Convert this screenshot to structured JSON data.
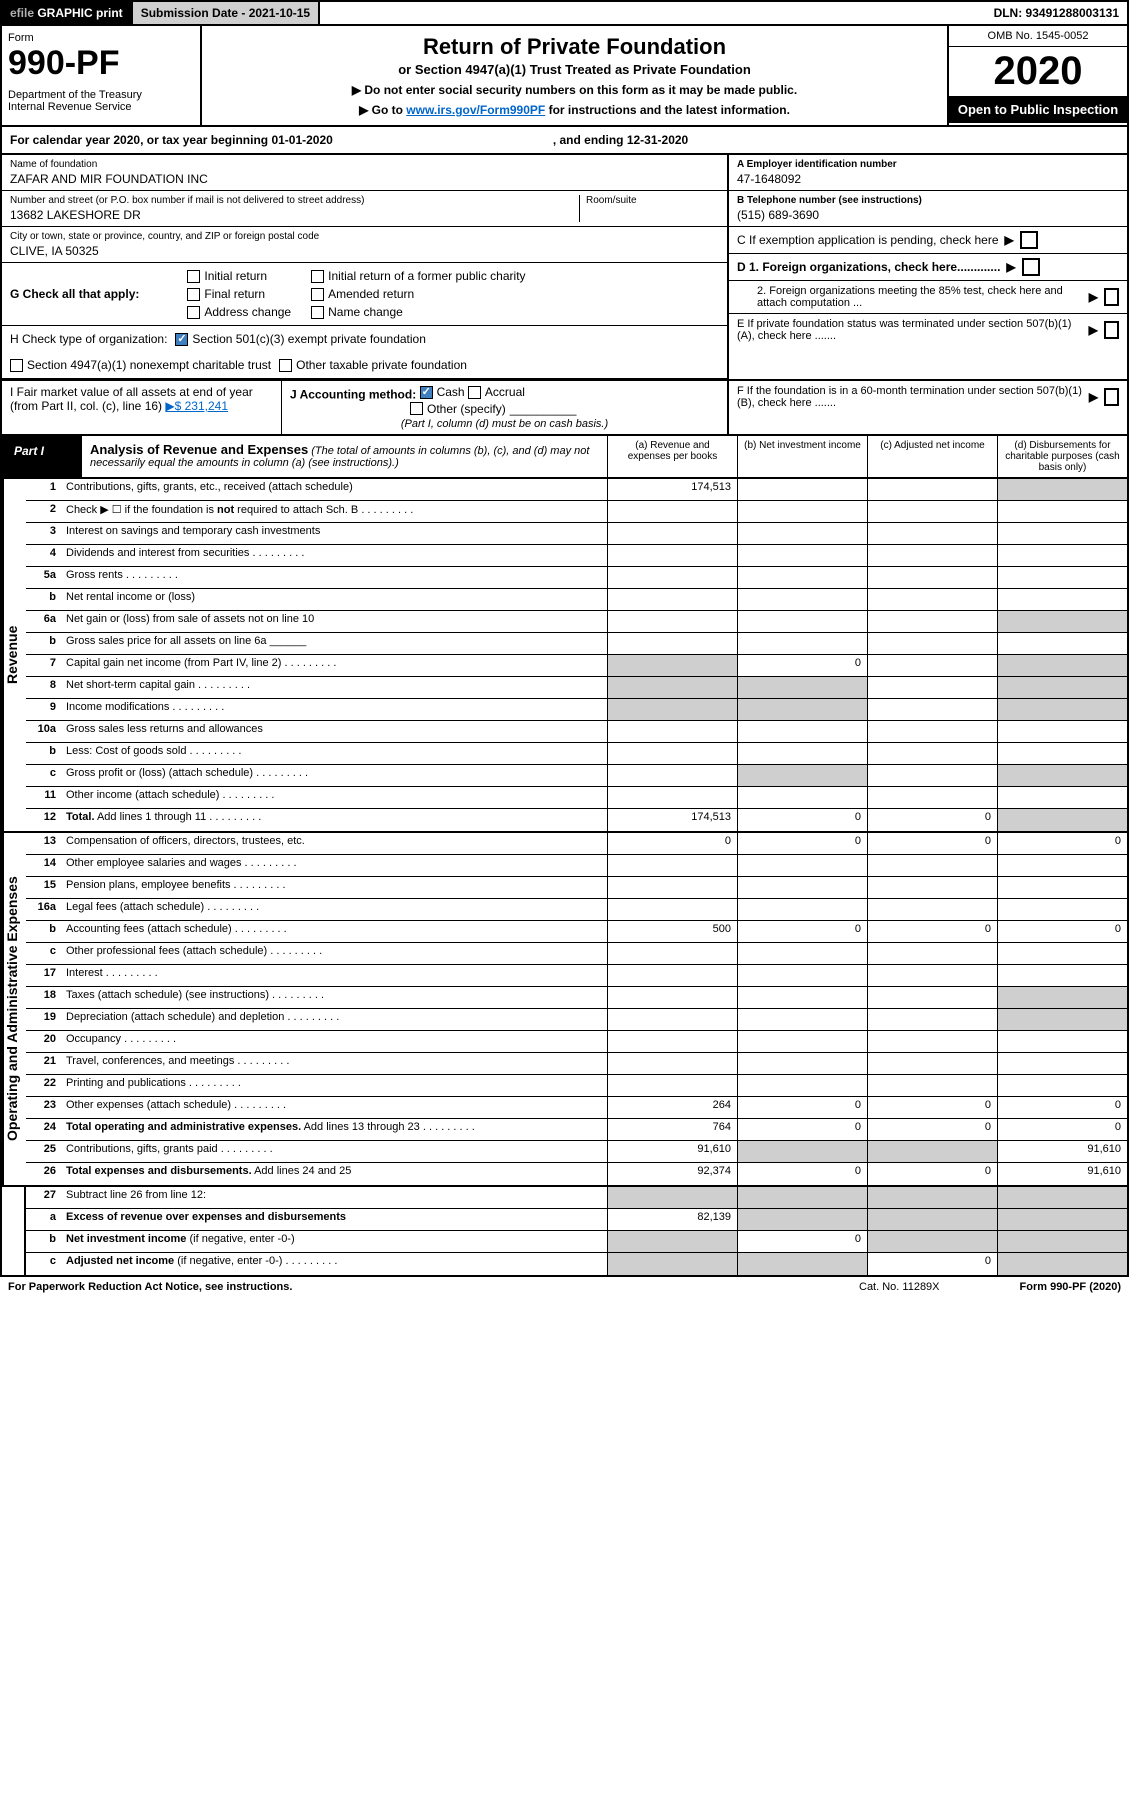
{
  "topbar": {
    "efile_prefix": "efile",
    "efile_text": " GRAPHIC print",
    "subdate": "Submission Date - 2021-10-15",
    "dln": "DLN: 93491288003131"
  },
  "header": {
    "form": "Form",
    "formno": "990-PF",
    "dept": "Department of the Treasury\nInternal Revenue Service",
    "title": "Return of Private Foundation",
    "sub": "or Section 4947(a)(1) Trust Treated as Private Foundation",
    "note1": "▶ Do not enter social security numbers on this form as it may be made public.",
    "note2_pre": "▶ Go to ",
    "note2_link": "www.irs.gov/Form990PF",
    "note2_post": " for instructions and the latest information.",
    "omb": "OMB No. 1545-0052",
    "year": "2020",
    "open": "Open to Public Inspection"
  },
  "caly": {
    "text": "For calendar year 2020, or tax year beginning 01-01-2020",
    "ending": ", and ending 12-31-2020"
  },
  "info": {
    "name_lbl": "Name of foundation",
    "name": "ZAFAR AND MIR FOUNDATION INC",
    "addr_lbl": "Number and street (or P.O. box number if mail is not delivered to street address)",
    "addr": "13682 LAKESHORE DR",
    "room_lbl": "Room/suite",
    "city_lbl": "City or town, state or province, country, and ZIP or foreign postal code",
    "city": "CLIVE, IA  50325",
    "ein_lbl": "A Employer identification number",
    "ein": "47-1648092",
    "tel_lbl": "B Telephone number (see instructions)",
    "tel": "(515) 689-3690",
    "c": "C If exemption application is pending, check here",
    "d1": "D 1. Foreign organizations, check here.............",
    "d2": "2. Foreign organizations meeting the 85% test, check here and attach computation ...",
    "e": "E  If private foundation status was terminated under section 507(b)(1)(A), check here .......",
    "f": "F  If the foundation is in a 60-month termination under section 507(b)(1)(B), check here .......",
    "g": "G Check all that apply:",
    "g_items": [
      "Initial return",
      "Final return",
      "Address change",
      "Initial return of a former public charity",
      "Amended return",
      "Name change"
    ],
    "h": "H Check type of organization:",
    "h1": "Section 501(c)(3) exempt private foundation",
    "h2": "Section 4947(a)(1) nonexempt charitable trust",
    "h3": "Other taxable private foundation",
    "i_lbl": "I Fair market value of all assets at end of year (from Part II, col. (c), line 16)",
    "i_val": "▶$  231,241",
    "j": "J Accounting method:",
    "j_cash": "Cash",
    "j_accr": "Accrual",
    "j_other": "Other (specify)",
    "j_note": "(Part I, column (d) must be on cash basis.)"
  },
  "part": {
    "lbl": "Part I",
    "title": "Analysis of Revenue and Expenses",
    "note": " (The total of amounts in columns (b), (c), and (d) may not necessarily equal the amounts in column (a) (see instructions).)",
    "col_a": "(a)   Revenue and expenses per books",
    "col_b": "(b)   Net investment income",
    "col_c": "(c)   Adjusted net income",
    "col_d": "(d)  Disbursements for charitable purposes (cash basis only)"
  },
  "side": {
    "rev": "Revenue",
    "exp": "Operating and Administrative Expenses"
  },
  "rows": [
    {
      "ln": "1",
      "d": "Contributions, gifts, grants, etc., received (attach schedule)",
      "a": "174,513",
      "greyD": true
    },
    {
      "ln": "2",
      "d": "Check ▶ ☐ if the foundation is <b>not</b> required to attach Sch. B",
      "dots": true,
      "noA": true
    },
    {
      "ln": "3",
      "d": "Interest on savings and temporary cash investments"
    },
    {
      "ln": "4",
      "d": "Dividends and interest from securities",
      "dots": true
    },
    {
      "ln": "5a",
      "d": "Gross rents",
      "dots": true
    },
    {
      "ln": "b",
      "d": "Net rental income or (loss)",
      "noA": true
    },
    {
      "ln": "6a",
      "d": "Net gain or (loss) from sale of assets not on line 10",
      "greyD": true
    },
    {
      "ln": "b",
      "d": "Gross sales price for all assets on line 6a ______",
      "noA": true
    },
    {
      "ln": "7",
      "d": "Capital gain net income (from Part IV, line 2)",
      "dots": true,
      "greyA": true,
      "b": "0",
      "greyD": true
    },
    {
      "ln": "8",
      "d": "Net short-term capital gain",
      "dots": true,
      "greyA": true,
      "greyB": true,
      "greyD": true
    },
    {
      "ln": "9",
      "d": "Income modifications",
      "dots": true,
      "greyA": true,
      "greyB": true,
      "greyD": true
    },
    {
      "ln": "10a",
      "d": "Gross sales less returns and allowances",
      "noA": true
    },
    {
      "ln": "b",
      "d": "Less: Cost of goods sold",
      "dots": true,
      "noA": true
    },
    {
      "ln": "c",
      "d": "Gross profit or (loss) (attach schedule)",
      "dots": true,
      "greyB": true,
      "greyD": true
    },
    {
      "ln": "11",
      "d": "Other income (attach schedule)",
      "dots": true
    },
    {
      "ln": "12",
      "d": "<b>Total.</b> Add lines 1 through 11",
      "dots": true,
      "a": "174,513",
      "b": "0",
      "c": "0",
      "greyD": true
    }
  ],
  "exprows": [
    {
      "ln": "13",
      "d": "Compensation of officers, directors, trustees, etc.",
      "a": "0",
      "b": "0",
      "c": "0",
      "dd": "0"
    },
    {
      "ln": "14",
      "d": "Other employee salaries and wages",
      "dots": true
    },
    {
      "ln": "15",
      "d": "Pension plans, employee benefits",
      "dots": true
    },
    {
      "ln": "16a",
      "d": "Legal fees (attach schedule)",
      "dots": true
    },
    {
      "ln": "b",
      "d": "Accounting fees (attach schedule)",
      "dots": true,
      "a": "500",
      "b": "0",
      "c": "0",
      "dd": "0"
    },
    {
      "ln": "c",
      "d": "Other professional fees (attach schedule)",
      "dots": true
    },
    {
      "ln": "17",
      "d": "Interest",
      "dots": true
    },
    {
      "ln": "18",
      "d": "Taxes (attach schedule) (see instructions)",
      "dots": true,
      "greyD": true
    },
    {
      "ln": "19",
      "d": "Depreciation (attach schedule) and depletion",
      "dots": true,
      "greyD": true
    },
    {
      "ln": "20",
      "d": "Occupancy",
      "dots": true
    },
    {
      "ln": "21",
      "d": "Travel, conferences, and meetings",
      "dots": true
    },
    {
      "ln": "22",
      "d": "Printing and publications",
      "dots": true
    },
    {
      "ln": "23",
      "d": "Other expenses (attach schedule)",
      "dots": true,
      "a": "264",
      "b": "0",
      "c": "0",
      "dd": "0"
    },
    {
      "ln": "24",
      "d": "<b>Total operating and administrative expenses.</b> Add lines 13 through 23",
      "dots": true,
      "a": "764",
      "b": "0",
      "c": "0",
      "dd": "0"
    },
    {
      "ln": "25",
      "d": "Contributions, gifts, grants paid",
      "dots": true,
      "a": "91,610",
      "greyB": true,
      "greyC": true,
      "dd": "91,610"
    },
    {
      "ln": "26",
      "d": "<b>Total expenses and disbursements.</b> Add lines 24 and 25",
      "a": "92,374",
      "b": "0",
      "c": "0",
      "dd": "91,610"
    }
  ],
  "botrows": [
    {
      "ln": "27",
      "d": "Subtract line 26 from line 12:",
      "greyA": true,
      "greyB": true,
      "greyC": true,
      "greyD": true
    },
    {
      "ln": "a",
      "d": "<b>Excess of revenue over expenses and disbursements</b>",
      "a": "82,139",
      "greyB": true,
      "greyC": true,
      "greyD": true
    },
    {
      "ln": "b",
      "d": "<b>Net investment income</b> (if negative, enter -0-)",
      "greyA": true,
      "b": "0",
      "greyC": true,
      "greyD": true
    },
    {
      "ln": "c",
      "d": "<b>Adjusted net income</b> (if negative, enter -0-)",
      "dots": true,
      "greyA": true,
      "greyB": true,
      "c": "0",
      "greyD": true
    }
  ],
  "footer": {
    "pra": "For Paperwork Reduction Act Notice, see instructions.",
    "cat": "Cat. No. 11289X",
    "form": "Form 990-PF (2020)"
  }
}
